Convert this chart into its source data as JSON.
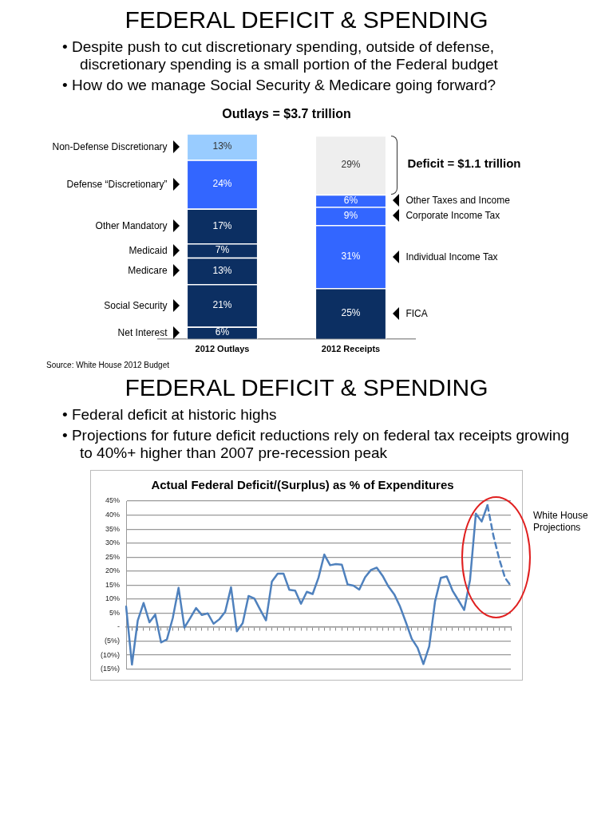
{
  "chart_data": [
    {
      "type": "bar",
      "title": "FEDERAL DEFICIT & SPENDING",
      "subtitle": "Outlays = $3.7 trillion",
      "stacked": true,
      "categories": [
        "2012 Outlays",
        "2012 Receipts"
      ],
      "series": [
        {
          "name": "Net Interest",
          "color": "#0c2f62",
          "values": [
            6,
            null
          ],
          "value_labels": [
            "6%",
            null
          ]
        },
        {
          "name": "Social Security",
          "color": "#0c2f62",
          "values": [
            21,
            null
          ],
          "value_labels": [
            "21%",
            null
          ]
        },
        {
          "name": "Medicare",
          "color": "#0c2f62",
          "values": [
            13,
            null
          ],
          "value_labels": [
            "13%",
            null
          ]
        },
        {
          "name": "Medicaid",
          "color": "#0c2f62",
          "values": [
            7,
            null
          ],
          "value_labels": [
            "7%",
            null
          ]
        },
        {
          "name": "Other Mandatory",
          "color": "#0c2f62",
          "values": [
            17,
            null
          ],
          "value_labels": [
            "17%",
            null
          ]
        },
        {
          "name": "Defense “Discretionary”",
          "color": "#3366ff",
          "values": [
            24,
            null
          ],
          "value_labels": [
            "24%",
            null
          ]
        },
        {
          "name": "Non-Defense Discretionary",
          "color": "#99ccff",
          "values": [
            13,
            null
          ],
          "value_labels": [
            "13%",
            null
          ]
        },
        {
          "name": "FICA",
          "color": "#0c2f62",
          "values": [
            null,
            25
          ],
          "value_labels": [
            null,
            "25%"
          ]
        },
        {
          "name": "Individual Income Tax",
          "color": "#3366ff",
          "values": [
            null,
            31
          ],
          "value_labels": [
            null,
            "31%"
          ]
        },
        {
          "name": "Corporate Income Tax",
          "color": "#3366ff",
          "values": [
            null,
            9
          ],
          "value_labels": [
            null,
            "9%"
          ]
        },
        {
          "name": "Other Taxes and Income",
          "color": "#3366ff",
          "values": [
            null,
            6
          ],
          "value_labels": [
            null,
            "6%"
          ]
        },
        {
          "color": "#eeeeee",
          "values": [
            null,
            29
          ],
          "value_labels": [
            null,
            "29%"
          ]
        }
      ],
      "annotations": [
        "• Despite push to cut discretionary spending, outside of defense, discretionary spending is a small portion of the Federal budget",
        "• How do we manage Social Security & Medicare going forward?",
        "Deficit = $1.1 trillion",
        "Source: White House 2012 Budget"
      ],
      "legend": false
    },
    {
      "type": "line",
      "title": "FEDERAL DEFICIT & SPENDING",
      "subtitle": "Actual Federal Deficit/(Surplus) as % of Expenditures",
      "categories": [
        null,
        null,
        null,
        null,
        null,
        null,
        null,
        null,
        null,
        null,
        null,
        null,
        null,
        null,
        null,
        null,
        null,
        null,
        null,
        null,
        null,
        null,
        null,
        null,
        null,
        null,
        null,
        null,
        null,
        null,
        null,
        null,
        null,
        null,
        null,
        null,
        null,
        null,
        null,
        null,
        null,
        null,
        null,
        null,
        null,
        null,
        null,
        null,
        null,
        null,
        null,
        null,
        null,
        null,
        null,
        null,
        null,
        null,
        null,
        null,
        null,
        null,
        null,
        null,
        null,
        null,
        null
      ],
      "series": [
        {
          "color": "#4f81bd",
          "line_style": "solid",
          "values": [
            7.3,
            -13.4,
            2.4,
            8.6,
            1.7,
            4.5,
            -5.5,
            -4.4,
            3.2,
            14.0,
            -0.2,
            3.2,
            6.8,
            4.3,
            4.9,
            1.2,
            2.8,
            5.5,
            14.2,
            -1.5,
            1.4,
            11.1,
            10.2,
            6.2,
            2.4,
            16.2,
            19.1,
            19.1,
            13.3,
            13.0,
            8.3,
            12.6,
            11.8,
            17.6,
            25.9,
            22.1,
            22.5,
            22.3,
            15.2,
            14.8,
            13.4,
            17.8,
            20.4,
            21.2,
            18.3,
            14.5,
            11.7,
            7.3,
            1.7,
            -4.2,
            -7.4,
            -13.2,
            -6.9,
            9.2,
            17.6,
            18.1,
            13.0,
            9.6,
            6.1,
            16.8,
            40.5,
            37.7,
            43.5,
            null,
            null,
            null,
            null
          ]
        },
        {
          "color": "#4f81bd",
          "line_style": "dashed",
          "values": [
            null,
            null,
            null,
            null,
            null,
            null,
            null,
            null,
            null,
            null,
            null,
            null,
            null,
            null,
            null,
            null,
            null,
            null,
            null,
            null,
            null,
            null,
            null,
            null,
            null,
            null,
            null,
            null,
            null,
            null,
            null,
            null,
            null,
            null,
            null,
            null,
            null,
            null,
            null,
            null,
            null,
            null,
            null,
            null,
            null,
            null,
            null,
            null,
            null,
            null,
            null,
            null,
            null,
            null,
            null,
            null,
            null,
            null,
            null,
            null,
            null,
            null,
            43.5,
            32.7,
            24.4,
            17.6,
            14.7
          ]
        }
      ],
      "ylim": [
        -15,
        45
      ],
      "yticks": [
        {
          "value": -15,
          "label": "(15%)"
        },
        {
          "value": -10,
          "label": "(10%)"
        },
        {
          "value": -5,
          "label": "(5%)"
        },
        {
          "value": 0,
          "label": "-"
        },
        {
          "value": 5,
          "label": "5%"
        },
        {
          "value": 10,
          "label": "10%"
        },
        {
          "value": 15,
          "label": "15%"
        },
        {
          "value": 20,
          "label": "20%"
        },
        {
          "value": 25,
          "label": "25%"
        },
        {
          "value": 30,
          "label": "30%"
        },
        {
          "value": 35,
          "label": "35%"
        },
        {
          "value": 40,
          "label": "40%"
        },
        {
          "value": 45,
          "label": "45%"
        }
      ],
      "grid": "y",
      "marker": "none",
      "legend": false,
      "annotations": [
        "• Federal deficit at historic highs",
        "• Projections for future deficit reductions rely on federal tax receipts growing to 40%+ higher than 2007 pre-recession peak",
        "White House Projections"
      ]
    }
  ]
}
